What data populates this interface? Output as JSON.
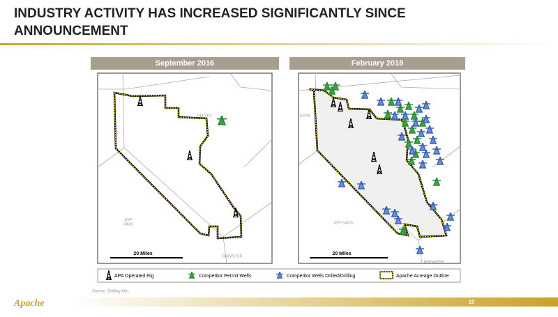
{
  "header": {
    "title_line1": "INDUSTRY ACTIVITY HAS INCREASED SIGNIFICANTLY SINCE",
    "title_line2": "ANNOUNCEMENT"
  },
  "panels": [
    {
      "label": "September 2016",
      "map_labels": [
        "REEVES",
        "JEFF",
        "DAVIS",
        "BREWSTER"
      ],
      "scale": "20 Miles"
    },
    {
      "label": "February 2018",
      "map_labels": [
        "ESON",
        "JEFF DAVIS",
        "BREWSTER"
      ],
      "scale": "20 Miles"
    }
  ],
  "legend": [
    "APA Operated Rig",
    "Competitor Permit Wells",
    "Competitor Wells Drilled/Drilling",
    "Apache Acreage Outline"
  ],
  "source": "Source:  Drilling Info.",
  "footer": {
    "logo": "Apache",
    "page": "10"
  }
}
